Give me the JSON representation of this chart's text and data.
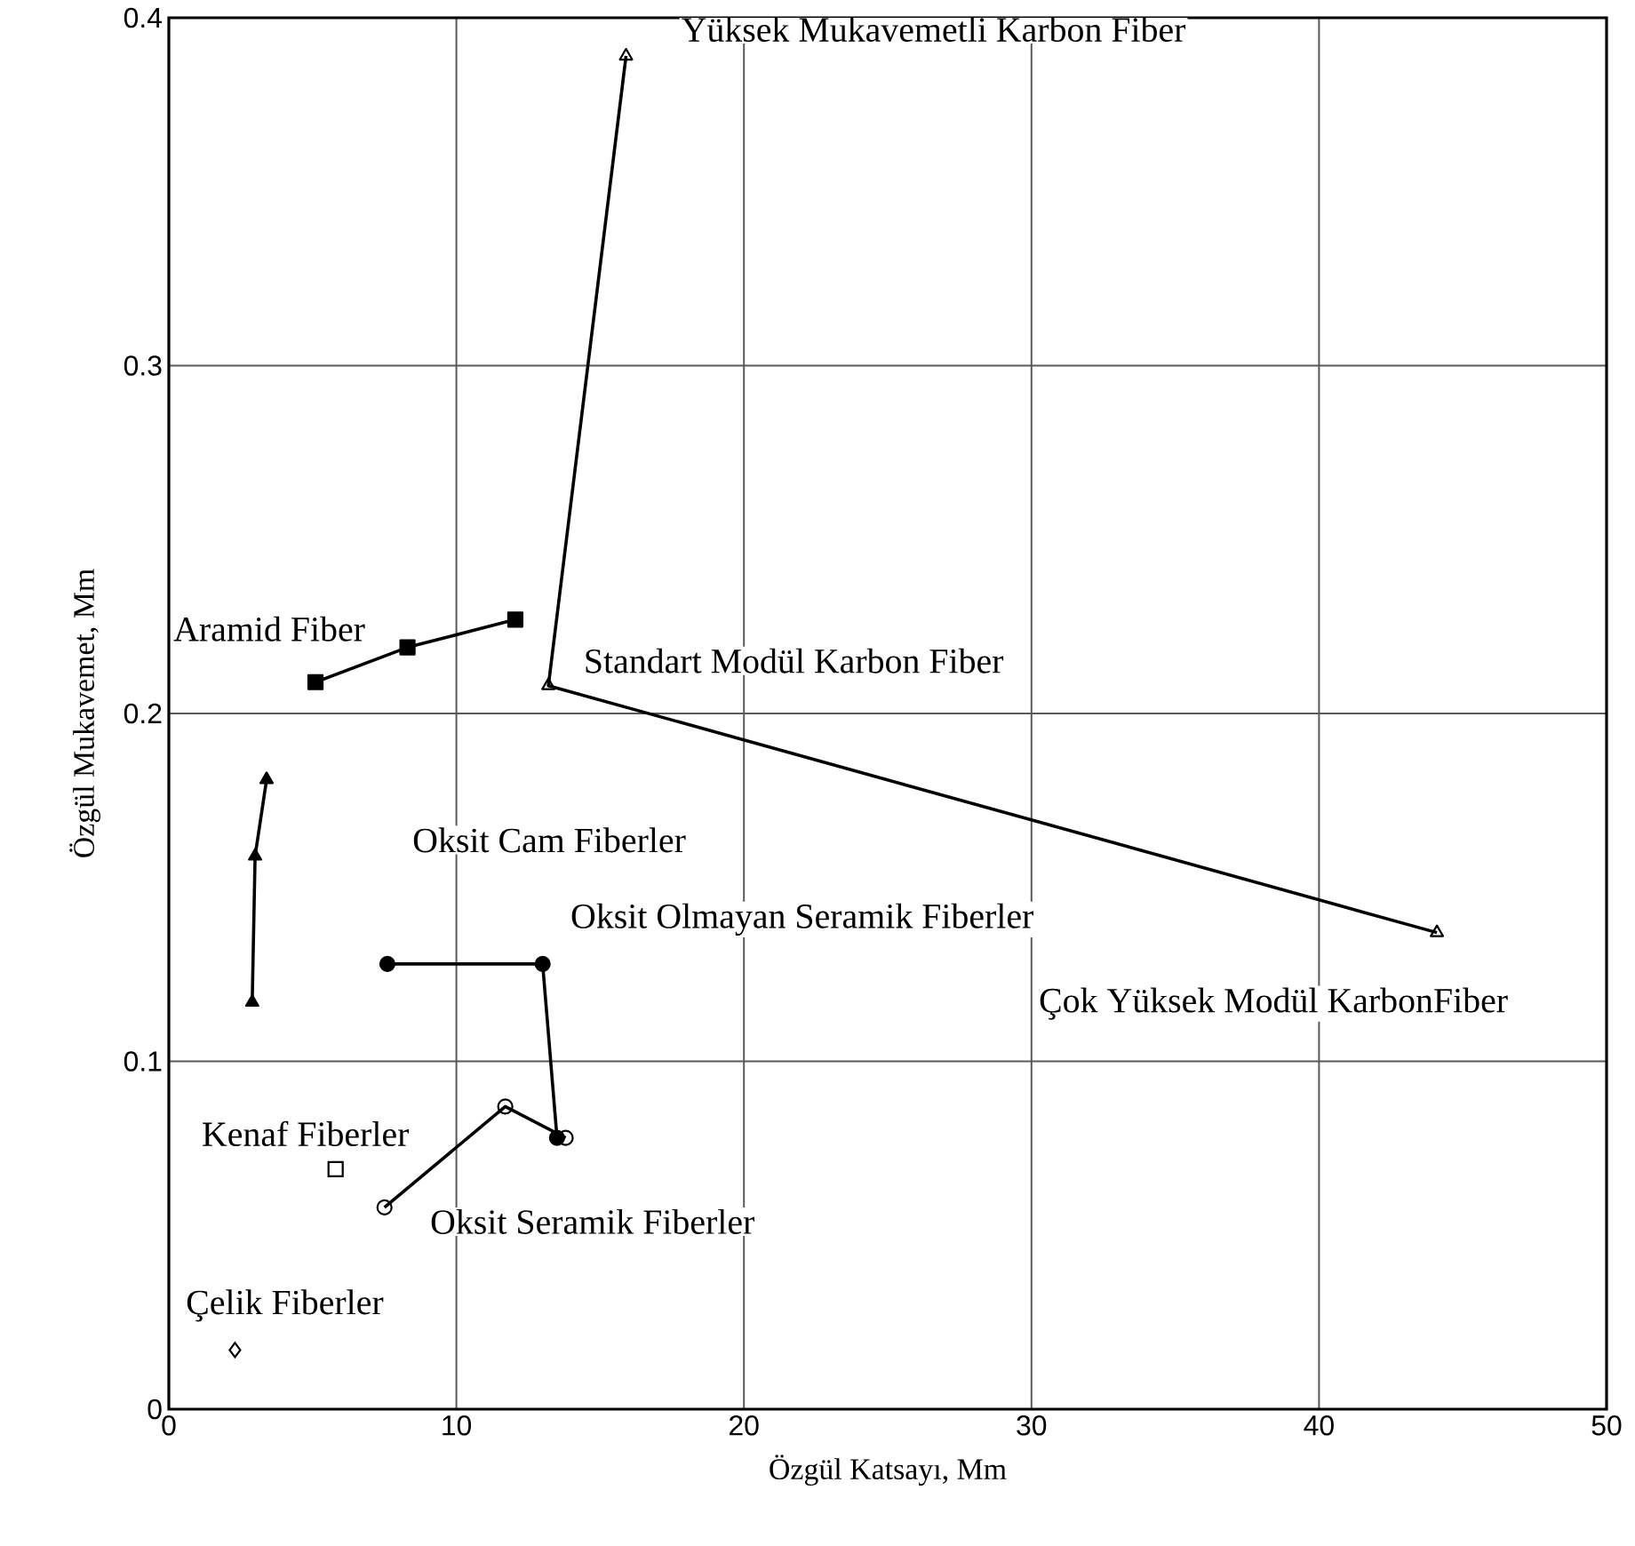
{
  "chart_data": {
    "type": "line",
    "xlabel": "Özgül Katsayı, Mm",
    "ylabel": "Özgül Mukavemet, Mm",
    "xlim": [
      0,
      50
    ],
    "ylim": [
      0,
      0.4
    ],
    "xticks": [
      0,
      10,
      20,
      30,
      40,
      50
    ],
    "yticks": [
      0,
      0.1,
      0.2,
      0.3,
      0.4
    ],
    "grid": true,
    "series": [
      {
        "color": "#000000",
        "marker": "square",
        "x": [
          5.1,
          8.3,
          12.05
        ],
        "values": [
          0.209,
          0.219,
          0.227
        ]
      },
      {
        "color": "#000000",
        "marker": "triangle",
        "x": [
          15.9,
          13.2,
          44.1
        ],
        "values": [
          0.389,
          0.208,
          0.137
        ]
      },
      {
        "color": "#000000",
        "marker": "triangle",
        "x": [
          2.9,
          3.0,
          3.4
        ],
        "values": [
          0.117,
          0.159,
          0.181
        ]
      },
      {
        "color": "#000000",
        "marker": "circle",
        "x": [
          7.6,
          13.0,
          13.5
        ],
        "values": [
          0.128,
          0.128,
          0.078
        ]
      },
      {
        "color": "#000000",
        "marker": "circle",
        "x": [
          7.5,
          11.7,
          13.8
        ],
        "values": [
          0.058,
          0.087,
          0.078
        ]
      },
      {
        "type": "scatter",
        "color": "#000000",
        "marker": "square",
        "x": [
          5.8
        ],
        "values": [
          0.069
        ]
      },
      {
        "type": "scatter",
        "color": "#000000",
        "marker": "diamond",
        "x": [
          2.3
        ],
        "values": [
          0.017
        ]
      }
    ],
    "annotations": [
      {
        "text": "Yüksek Mukavemetli Karbon Fiber",
        "x": 15.9,
        "y": 0.389
      },
      {
        "text": "Aramid Fiber",
        "x": 5.1,
        "y": 0.209
      },
      {
        "text": "Standart Modül Karbon Fiber",
        "x": 13.2,
        "y": 0.208
      },
      "Oksit Cam Fiberler",
      {
        "text": "Oksit Olmayan Seramik Fiberler",
        "x": 13.0,
        "y": 0.128
      },
      {
        "text": "Çok Yüksek Modül KarbonFiber",
        "x": 44.1,
        "y": 0.137
      },
      {
        "text": "Kenaf Fiberler",
        "x": 5.8,
        "y": 0.069
      },
      {
        "text": "Oksit Seramik Fiberler",
        "x": 7.5,
        "y": 0.058
      },
      {
        "text": "Çelik Fiberler",
        "x": 2.3,
        "y": 0.017
      }
    ]
  }
}
